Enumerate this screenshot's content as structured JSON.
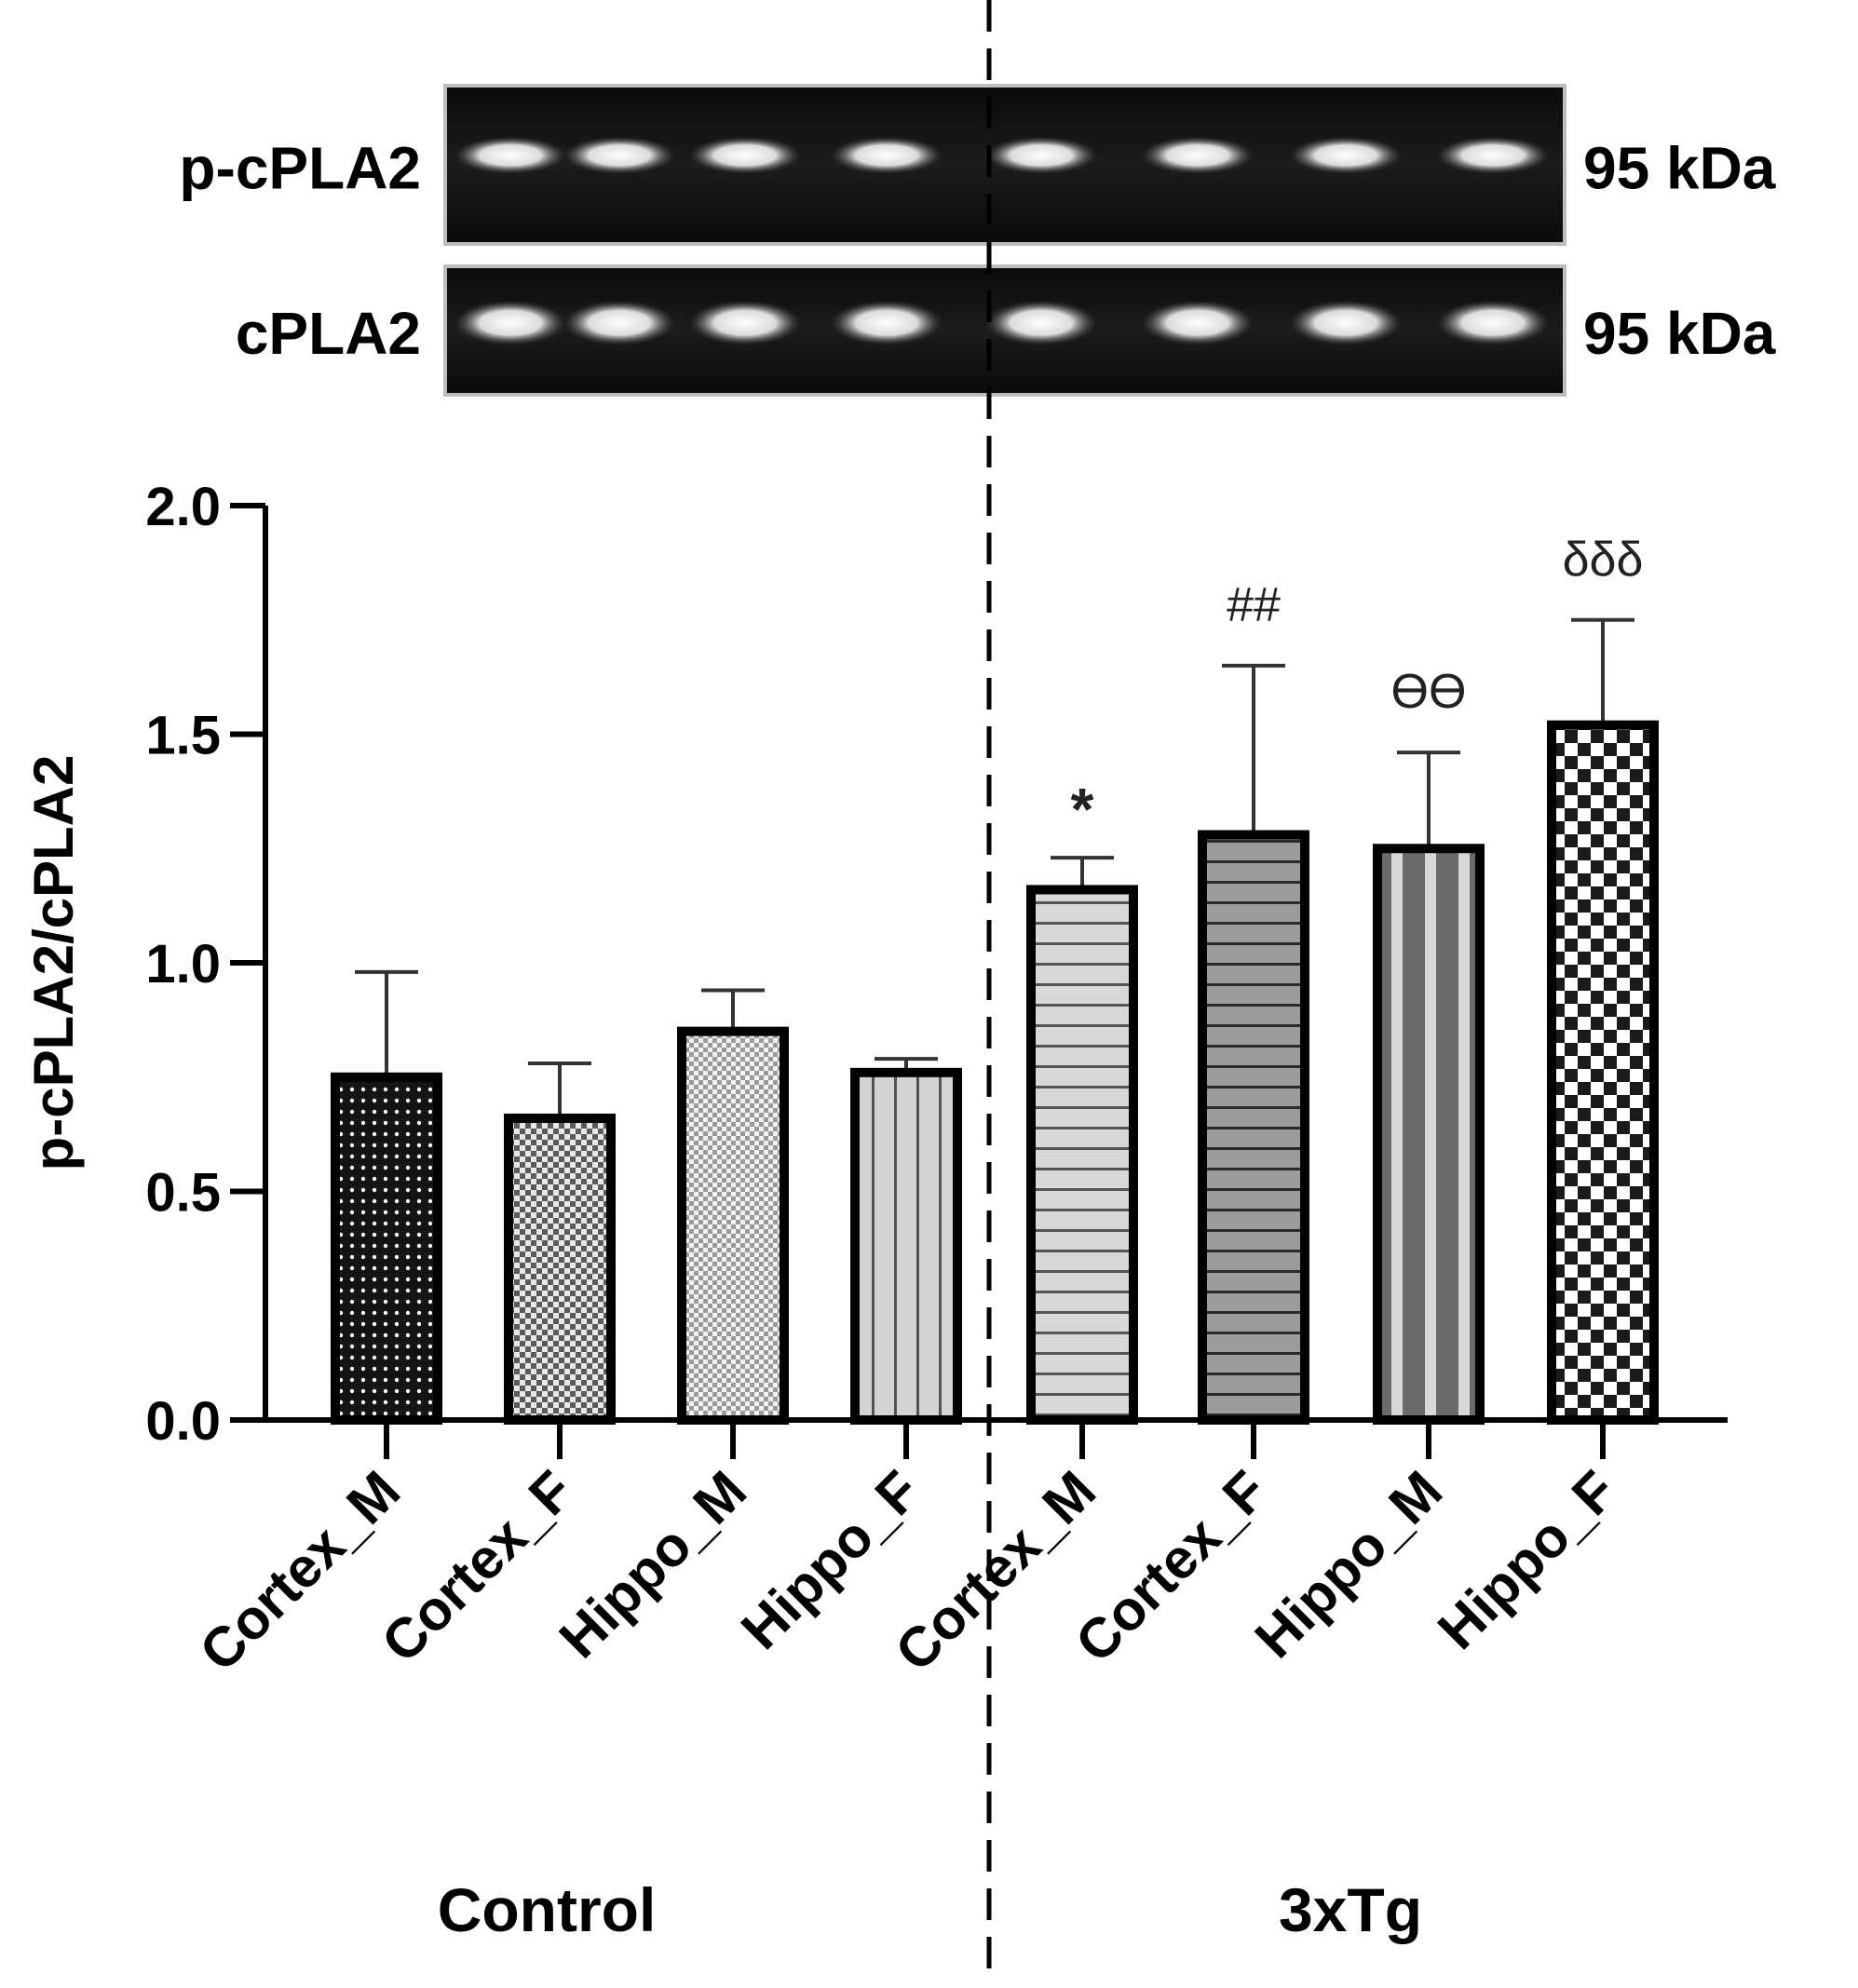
{
  "blot": {
    "rows": [
      {
        "label": "p-cPLA2",
        "size": "95 kDa"
      },
      {
        "label": "cPLA2",
        "size": "95 kDa"
      }
    ]
  },
  "chart_data": {
    "type": "bar",
    "ylabel": "p-cPLA2/cPLA2",
    "ylim": [
      0,
      2.0
    ],
    "yticks": [
      "0.0",
      "0.5",
      "1.0",
      "1.5",
      "2.0"
    ],
    "categories": [
      "Cortex_M",
      "Cortex_F",
      "Hippo_M",
      "Hippo_F",
      "Cortex_M",
      "Cortex_F",
      "Hippo_M",
      "Hippo_F"
    ],
    "values": [
      0.75,
      0.66,
      0.85,
      0.76,
      1.16,
      1.28,
      1.25,
      1.52
    ],
    "errors": [
      0.23,
      0.12,
      0.09,
      0.03,
      0.07,
      0.37,
      0.21,
      0.23
    ],
    "annotations": [
      "",
      "",
      "",
      "",
      "*",
      "##",
      "ϴϴ",
      "δδδ"
    ],
    "groups": [
      {
        "label": "Control"
      },
      {
        "label": "3xTg"
      }
    ],
    "grid": false,
    "legend": "none"
  }
}
